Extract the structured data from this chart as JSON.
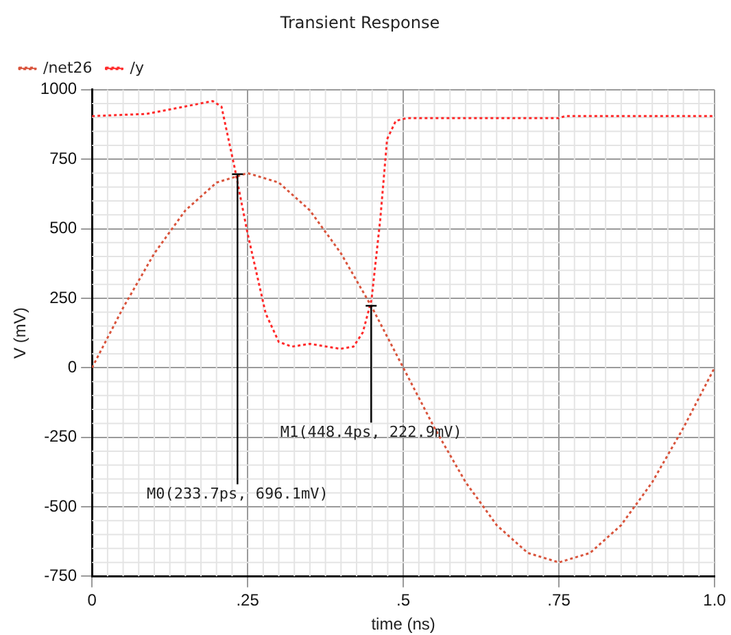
{
  "chart_data": {
    "type": "line",
    "title": "Transient Response",
    "xlabel": "time (ns)",
    "ylabel": "V (mV)",
    "xlim": [
      0,
      1
    ],
    "xticks": [
      0,
      {
        "value": 0.25,
        "label": ".25"
      },
      {
        "value": 0.5,
        "label": ".5"
      },
      {
        "value": 0.75,
        "label": ".75"
      },
      {
        "value": 1,
        "label": "1.0"
      }
    ],
    "ylim": [
      -750,
      1000
    ],
    "yticks": [
      -750,
      -500,
      -250,
      0,
      250,
      500,
      750,
      1000
    ],
    "grid": true,
    "legend": "top left",
    "marker": "none",
    "line_style": "dotted",
    "series": [
      {
        "name": "/net26",
        "color": "#d9543c",
        "x": [
          0,
          0.05,
          0.1,
          0.15,
          0.2,
          0.25,
          0.3,
          0.35,
          0.4,
          0.45,
          0.5,
          0.55,
          0.6,
          0.65,
          0.7,
          0.75,
          0.8,
          0.85,
          0.9,
          0.95,
          1
        ],
        "values": [
          0,
          216,
          411,
          566,
          666,
          700,
          666,
          566,
          411,
          216,
          0,
          -216,
          -411,
          -566,
          -666,
          -700,
          -666,
          -566,
          -411,
          -216,
          0
        ]
      },
      {
        "name": "/y",
        "color": "#ff2a2a",
        "x": [
          0,
          0.088,
          0.194,
          0.208,
          0.229,
          0.25,
          0.279,
          0.3,
          0.321,
          0.35,
          0.399,
          0.42,
          0.435,
          0.449,
          0.463,
          0.474,
          0.488,
          0.506,
          0.75,
          0.76,
          1
        ],
        "values": [
          905,
          913,
          959,
          939,
          720,
          482,
          195,
          93,
          76,
          86,
          68,
          76,
          127,
          245,
          533,
          822,
          888,
          898,
          898,
          905,
          905
        ]
      }
    ],
    "annotations": [
      {
        "text": "M0(233.7ps, 696.1mV)",
        "x": 0.2337,
        "y": 696.1
      },
      {
        "text": "M1(448.4ps, 222.9mV)",
        "x": 0.4484,
        "y": 222.9
      }
    ]
  }
}
